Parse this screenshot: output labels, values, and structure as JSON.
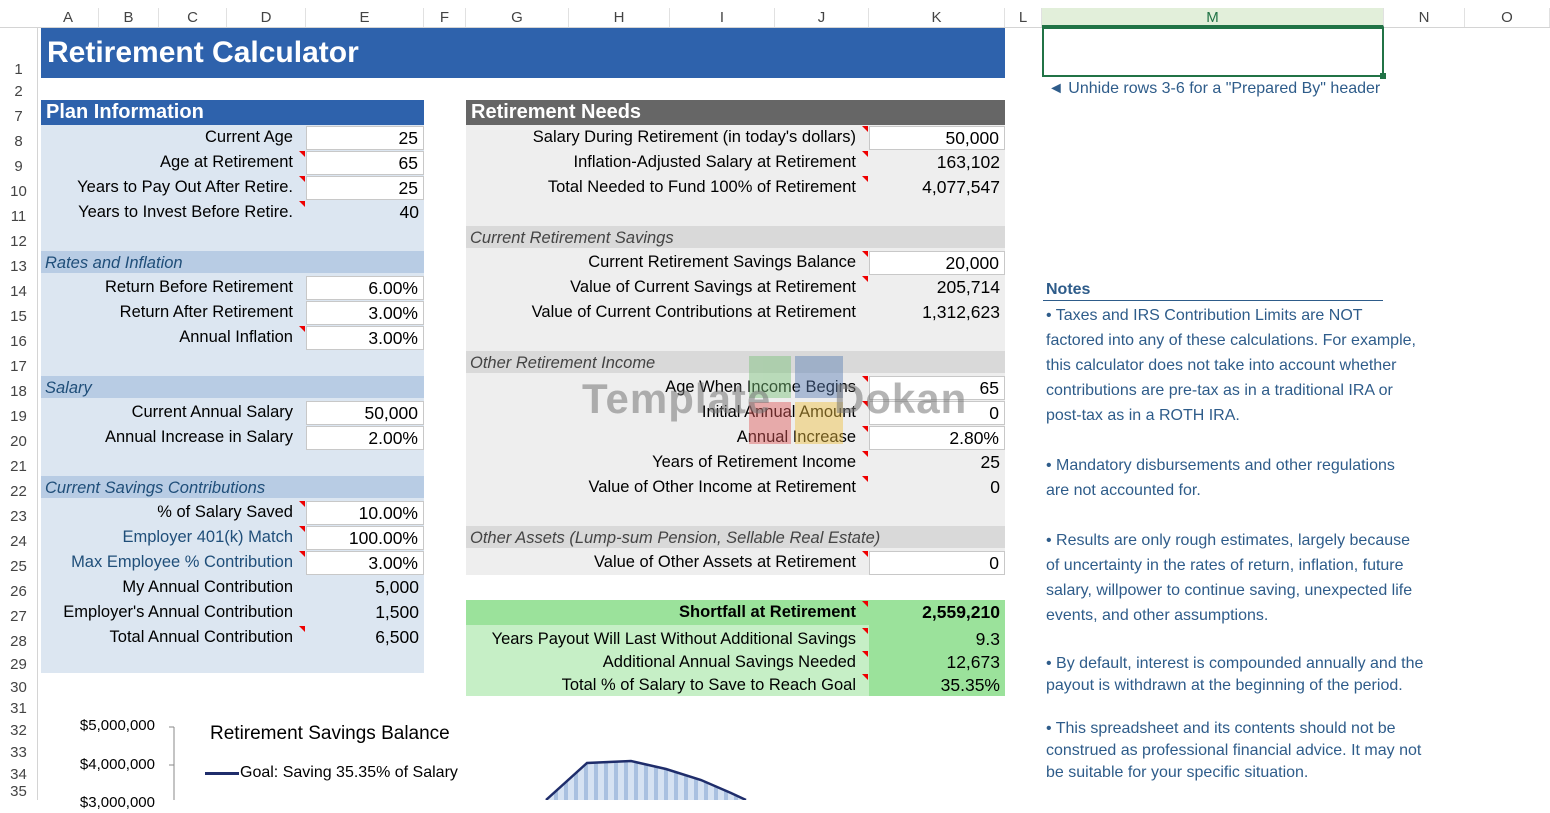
{
  "columns": [
    "A",
    "B",
    "C",
    "D",
    "E",
    "F",
    "G",
    "H",
    "I",
    "J",
    "K",
    "L",
    "M",
    "N",
    "O"
  ],
  "rows": [
    "1",
    "2",
    "7",
    "8",
    "9",
    "10",
    "11",
    "12",
    "13",
    "14",
    "15",
    "16",
    "17",
    "18",
    "19",
    "20",
    "21",
    "22",
    "23",
    "24",
    "25",
    "26",
    "27",
    "28",
    "29",
    "30",
    "31",
    "32",
    "33",
    "34",
    "35"
  ],
  "title": "Retirement Calculator",
  "hint": "◄ Unhide rows 3-6 for a \"Prepared By\" header",
  "plan": {
    "header": "Plan Information",
    "rows": [
      {
        "label": "Current Age",
        "value": "25"
      },
      {
        "label": "Age at Retirement",
        "value": "65"
      },
      {
        "label": "Years to Pay Out After Retire.",
        "value": "25"
      },
      {
        "label": "Years to Invest Before Retire.",
        "value": "40"
      }
    ],
    "rates_header": "Rates and Inflation",
    "rates": [
      {
        "label": "Return Before Retirement",
        "value": "6.00%"
      },
      {
        "label": "Return After Retirement",
        "value": "3.00%"
      },
      {
        "label": "Annual Inflation",
        "value": "3.00%"
      }
    ],
    "salary_header": "Salary",
    "salary": [
      {
        "label": "Current Annual Salary",
        "value": "50,000"
      },
      {
        "label": "Annual Increase in Salary",
        "value": "2.00%"
      }
    ],
    "contrib_header": "Current Savings Contributions",
    "contrib": [
      {
        "label": "% of Salary Saved",
        "value": "10.00%"
      },
      {
        "label": "Employer 401(k) Match",
        "value": "100.00%"
      },
      {
        "label": "Max Employee % Contribution",
        "value": "3.00%"
      },
      {
        "label": "My Annual Contribution",
        "value": "5,000"
      },
      {
        "label": "Employer's Annual Contribution",
        "value": "1,500"
      },
      {
        "label": "Total Annual Contribution",
        "value": "6,500"
      }
    ]
  },
  "needs": {
    "header": "Retirement Needs",
    "rows": [
      {
        "label": "Salary During Retirement (in today's dollars)",
        "value": "50,000"
      },
      {
        "label": "Inflation-Adjusted Salary at Retirement",
        "value": "163,102"
      },
      {
        "label": "Total Needed to Fund 100% of Retirement",
        "value": "4,077,547"
      }
    ],
    "savings_header": "Current Retirement Savings",
    "savings": [
      {
        "label": "Current Retirement Savings Balance",
        "value": "20,000"
      },
      {
        "label": "Value of Current Savings at Retirement",
        "value": "205,714"
      },
      {
        "label": "Value of Current Contributions at Retirement",
        "value": "1,312,623"
      }
    ],
    "other_header": "Other Retirement Income",
    "other": [
      {
        "label": "Age When Income Begins",
        "value": "65"
      },
      {
        "label": "Initial Annual Amount",
        "value": "0"
      },
      {
        "label": "Annual Increase",
        "value": "2.80%"
      },
      {
        "label": "Years of Retirement Income",
        "value": "25"
      },
      {
        "label": "Value of Other Income at Retirement",
        "value": "0"
      }
    ],
    "assets_header": "Other Assets (Lump-sum Pension, Sellable Real Estate)",
    "assets": [
      {
        "label": "Value of Other Assets at Retirement",
        "value": "0"
      }
    ],
    "results": [
      {
        "label": "Shortfall at Retirement",
        "value": "2,559,210"
      },
      {
        "label": "Years Payout Will Last Without Additional Savings",
        "value": "9.3"
      },
      {
        "label": "Additional Annual Savings Needed",
        "value": "12,673"
      },
      {
        "label": "Total % of Salary to Save to Reach Goal",
        "value": "35.35%"
      }
    ]
  },
  "notes": {
    "header": "Notes",
    "items": [
      [
        "• Taxes and IRS Contribution Limits are NOT",
        "factored into any of these calculations. For example,",
        "this calculator does not take into account whether",
        "contributions are pre-tax as in a traditional IRA or",
        "post-tax as in a ROTH IRA."
      ],
      [
        "• Mandatory disbursements and other regulations",
        "are not accounted for."
      ],
      [
        "• Results are only rough estimates, largely because",
        "of uncertainty in the rates of return, inflation, future",
        "salary, willpower to continue saving, unexpected life",
        "events, and other assumptions."
      ],
      [
        "• By default, interest is compounded annually and the",
        "payout is withdrawn at the beginning of the period."
      ],
      [
        "• This spreadsheet and its contents should not be",
        "construed as professional financial advice. It may not",
        "be suitable for your specific situation."
      ]
    ]
  },
  "watermark": "Template Dokan",
  "chart_data": {
    "type": "area",
    "title": "Retirement Savings Balance",
    "series": [
      {
        "name": "Goal: Saving 35.35% of Salary"
      }
    ],
    "y_ticks": [
      "$5,000,000",
      "$4,000,000",
      "$3,000,000"
    ],
    "ylim_visible": [
      3000000,
      5000000
    ]
  },
  "colors": {
    "title": "#2e62ac",
    "needs_header": "#666666",
    "panel_blue": "#dce6f1",
    "panel_gray": "#eeeeee",
    "result_green": "#9be29b",
    "series": "#1f2d6b"
  }
}
